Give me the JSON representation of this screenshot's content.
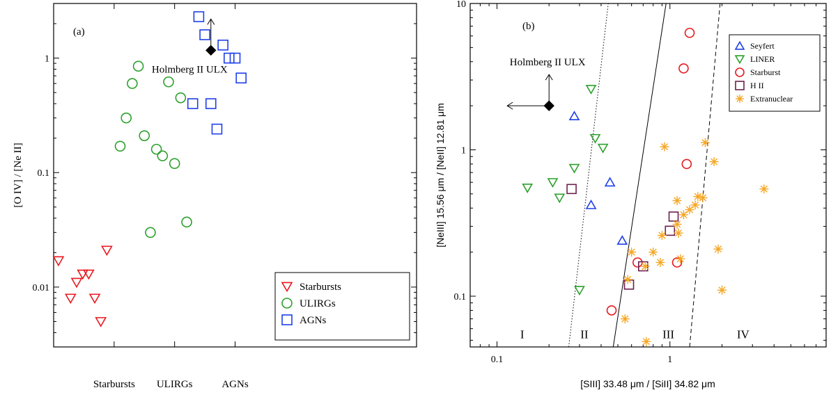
{
  "chart_data": [
    {
      "type": "scatter",
      "panel_label": "(a)",
      "ylabel": "[O IV] / [Ne II]",
      "ylim": [
        0.003,
        3
      ],
      "y_scale": "log",
      "y_ticks": [
        0.01,
        0.1,
        1
      ],
      "y_tick_labels": [
        "0.01",
        "0.1",
        "1"
      ],
      "xlim": [
        0,
        30
      ],
      "x_ticks": [
        5,
        10,
        15
      ],
      "categories": [
        "Starbursts",
        "ULIRGs",
        "AGNs"
      ],
      "grid": false,
      "legend_position": "bottom-right",
      "series": [
        {
          "name": "Starbursts",
          "marker": "triangle-down",
          "color": "#e8191f",
          "points": [
            [
              0.4,
              0.017
            ],
            [
              1.4,
              0.008
            ],
            [
              1.9,
              0.011
            ],
            [
              2.4,
              0.013
            ],
            [
              2.9,
              0.013
            ],
            [
              3.4,
              0.008
            ],
            [
              3.9,
              0.005
            ],
            [
              4.4,
              0.021
            ]
          ]
        },
        {
          "name": "ULIRGs",
          "marker": "circle",
          "color": "#2ca02c",
          "points": [
            [
              5.5,
              0.17
            ],
            [
              6.0,
              0.3
            ],
            [
              6.5,
              0.6
            ],
            [
              7.0,
              0.85
            ],
            [
              7.5,
              0.21
            ],
            [
              8.0,
              0.03
            ],
            [
              8.5,
              0.16
            ],
            [
              9.0,
              0.14
            ],
            [
              9.5,
              0.62
            ],
            [
              10.0,
              0.12
            ],
            [
              10.5,
              0.45
            ],
            [
              11.0,
              0.037
            ]
          ]
        },
        {
          "name": "AGNs",
          "marker": "square",
          "color": "#1f3fe8",
          "points": [
            [
              11.5,
              0.4
            ],
            [
              12.0,
              2.3
            ],
            [
              12.5,
              1.6
            ],
            [
              13.0,
              0.4
            ],
            [
              13.5,
              0.24
            ],
            [
              14.0,
              1.3
            ],
            [
              14.5,
              1.0
            ],
            [
              15.0,
              1.0
            ],
            [
              15.5,
              0.67
            ]
          ]
        }
      ],
      "annotations": [
        {
          "text": "Holmberg II ULX",
          "x": 13.0,
          "y": 1.17,
          "marker": "diamond",
          "arrow": "up"
        }
      ]
    },
    {
      "type": "scatter",
      "panel_label": "(b)",
      "xlabel": "[SIII] 33.48 μm / [SiII] 34.82 μm",
      "ylabel": "[NeIII] 15.56 μm / [NeII] 12.81 μm",
      "x_scale": "log",
      "y_scale": "log",
      "xlim": [
        0.07,
        8
      ],
      "ylim": [
        0.045,
        10
      ],
      "x_ticks": [
        0.1,
        1
      ],
      "x_tick_labels": [
        "0.1",
        "1"
      ],
      "y_ticks": [
        0.1,
        1,
        10
      ],
      "y_tick_labels": [
        "0.1",
        "1",
        "10"
      ],
      "grid": false,
      "legend_position": "top-right",
      "regions": [
        "I",
        "II",
        "III",
        "IV"
      ],
      "series": [
        {
          "name": "Seyfert",
          "marker": "triangle-up",
          "color": "#1f3fe8",
          "points": [
            [
              0.28,
              1.7
            ],
            [
              0.45,
              0.6
            ],
            [
              0.35,
              0.42
            ],
            [
              0.53,
              0.24
            ]
          ]
        },
        {
          "name": "LINER",
          "marker": "triangle-down",
          "color": "#2ca02c",
          "points": [
            [
              0.15,
              0.55
            ],
            [
              0.21,
              0.6
            ],
            [
              0.23,
              0.47
            ],
            [
              0.28,
              0.75
            ],
            [
              0.35,
              2.6
            ],
            [
              0.37,
              1.2
            ],
            [
              0.41,
              1.03
            ],
            [
              0.3,
              0.11
            ]
          ]
        },
        {
          "name": "Starburst",
          "marker": "circle",
          "color": "#e8191f",
          "points": [
            [
              1.3,
              6.3
            ],
            [
              1.2,
              3.6
            ],
            [
              1.25,
              0.8
            ],
            [
              0.46,
              0.08
            ],
            [
              0.65,
              0.17
            ],
            [
              1.1,
              0.17
            ]
          ]
        },
        {
          "name": "H II",
          "marker": "square",
          "color": "#6b1f4e",
          "points": [
            [
              0.27,
              0.54
            ],
            [
              1.0,
              0.28
            ],
            [
              1.05,
              0.35
            ],
            [
              0.7,
              0.16
            ],
            [
              0.58,
              0.12
            ]
          ]
        },
        {
          "name": "Extranuclear",
          "marker": "asterisk",
          "color": "#f5a623",
          "points": [
            [
              0.93,
              1.05
            ],
            [
              1.6,
              1.12
            ],
            [
              1.45,
              0.48
            ],
            [
              1.55,
              0.47
            ],
            [
              1.4,
              0.42
            ],
            [
              1.3,
              0.39
            ],
            [
              1.2,
              0.36
            ],
            [
              1.1,
              0.45
            ],
            [
              1.1,
              0.31
            ],
            [
              1.12,
              0.27
            ],
            [
              0.9,
              0.26
            ],
            [
              0.8,
              0.2
            ],
            [
              0.88,
              0.17
            ],
            [
              0.72,
              0.16
            ],
            [
              0.6,
              0.2
            ],
            [
              0.57,
              0.13
            ],
            [
              1.15,
              0.18
            ],
            [
              1.8,
              0.83
            ],
            [
              3.5,
              0.54
            ],
            [
              1.9,
              0.21
            ],
            [
              2.0,
              0.11
            ],
            [
              0.55,
              0.07
            ],
            [
              0.73,
              0.049
            ]
          ]
        }
      ],
      "lines": [
        {
          "style": "dotted",
          "x0": 0.26,
          "y0": 0.045,
          "x1": 0.44,
          "y1": 10
        },
        {
          "style": "solid",
          "x0": 0.47,
          "y0": 0.045,
          "x1": 0.95,
          "y1": 10
        },
        {
          "style": "dashed",
          "x0": 1.3,
          "y0": 0.045,
          "x1": 1.95,
          "y1": 10
        }
      ],
      "region_labels": [
        {
          "text": "I",
          "x": 0.14,
          "y": 0.055
        },
        {
          "text": "II",
          "x": 0.32,
          "y": 0.055
        },
        {
          "text": "III",
          "x": 0.98,
          "y": 0.055
        },
        {
          "text": "IV",
          "x": 2.65,
          "y": 0.055
        }
      ],
      "annotations": [
        {
          "text": "Holmberg II ULX",
          "x": 0.2,
          "y": 2.0,
          "marker": "diamond",
          "arrow": "up-left"
        }
      ]
    }
  ]
}
